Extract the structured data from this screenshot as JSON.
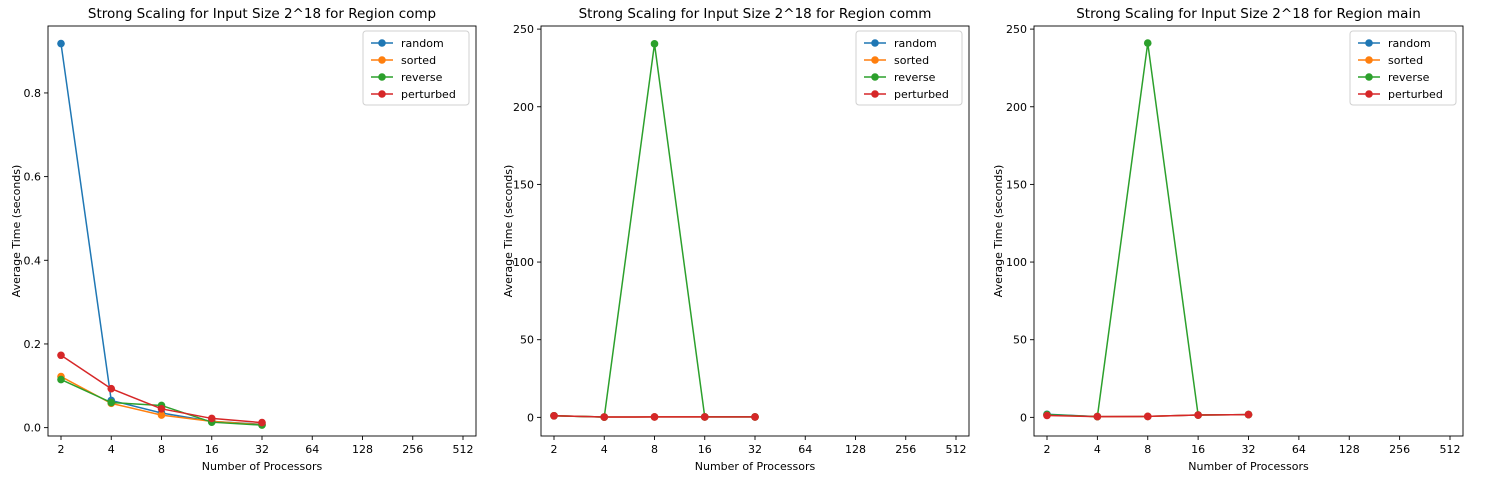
{
  "chart_data": [
    {
      "type": "line",
      "title": "Strong Scaling for Input Size 2^18 for Region comp",
      "xlabel": "Number of Processors",
      "ylabel": "Average Time (seconds)",
      "x_scale": "log2",
      "x_ticks": [
        2,
        4,
        8,
        16,
        32,
        64,
        128,
        256,
        512
      ],
      "xlim": [
        2,
        512
      ],
      "y_ticks": [
        0.0,
        0.2,
        0.4,
        0.6,
        0.8
      ],
      "y_tick_labels": [
        "0.0",
        "0.2",
        "0.4",
        "0.6",
        "0.8"
      ],
      "ylim": [
        -0.02,
        0.96
      ],
      "legend_placement": "top-right",
      "grid": false,
      "x": [
        2,
        4,
        8,
        16,
        32
      ],
      "series": [
        {
          "name": "random",
          "color": "#1f77b4",
          "values": [
            0.918,
            0.065,
            0.035,
            0.015,
            0.008
          ]
        },
        {
          "name": "sorted",
          "color": "#ff7f0e",
          "values": [
            0.122,
            0.058,
            0.03,
            0.015,
            0.007
          ]
        },
        {
          "name": "reverse",
          "color": "#2ca02c",
          "values": [
            0.115,
            0.06,
            0.053,
            0.013,
            0.006
          ]
        },
        {
          "name": "perturbed",
          "color": "#d62728",
          "values": [
            0.173,
            0.093,
            0.045,
            0.022,
            0.012
          ]
        }
      ]
    },
    {
      "type": "line",
      "title": "Strong Scaling for Input Size 2^18 for Region comm",
      "xlabel": "Number of Processors",
      "ylabel": "Average Time (seconds)",
      "x_scale": "log2",
      "x_ticks": [
        2,
        4,
        8,
        16,
        32,
        64,
        128,
        256,
        512
      ],
      "xlim": [
        2,
        512
      ],
      "y_ticks": [
        0,
        50,
        100,
        150,
        200,
        250
      ],
      "y_tick_labels": [
        "0",
        "50",
        "100",
        "150",
        "200",
        "250"
      ],
      "ylim": [
        -12,
        252
      ],
      "legend_placement": "top-right",
      "grid": false,
      "x": [
        2,
        4,
        8,
        16,
        32
      ],
      "series": [
        {
          "name": "random",
          "color": "#1f77b4",
          "values": [
            1.0,
            0.2,
            0.3,
            0.3,
            0.3
          ]
        },
        {
          "name": "sorted",
          "color": "#ff7f0e",
          "values": [
            1.0,
            0.2,
            0.3,
            0.3,
            0.3
          ]
        },
        {
          "name": "reverse",
          "color": "#2ca02c",
          "values": [
            1.0,
            0.2,
            240.5,
            0.3,
            0.3
          ]
        },
        {
          "name": "perturbed",
          "color": "#d62728",
          "values": [
            1.0,
            0.2,
            0.3,
            0.3,
            0.3
          ]
        }
      ]
    },
    {
      "type": "line",
      "title": "Strong Scaling for Input Size 2^18 for Region main",
      "xlabel": "Number of Processors",
      "ylabel": "Average Time (seconds)",
      "x_scale": "log2",
      "x_ticks": [
        2,
        4,
        8,
        16,
        32,
        64,
        128,
        256,
        512
      ],
      "xlim": [
        2,
        512
      ],
      "y_ticks": [
        0,
        50,
        100,
        150,
        200,
        250
      ],
      "y_tick_labels": [
        "0",
        "50",
        "100",
        "150",
        "200",
        "250"
      ],
      "ylim": [
        -12,
        252
      ],
      "legend_placement": "top-right",
      "grid": false,
      "x": [
        2,
        4,
        8,
        16,
        32
      ],
      "series": [
        {
          "name": "random",
          "color": "#1f77b4",
          "values": [
            2.0,
            0.5,
            0.6,
            1.5,
            1.8
          ]
        },
        {
          "name": "sorted",
          "color": "#ff7f0e",
          "values": [
            1.5,
            0.5,
            0.6,
            1.5,
            1.8
          ]
        },
        {
          "name": "reverse",
          "color": "#2ca02c",
          "values": [
            1.8,
            0.5,
            241.0,
            1.5,
            1.8
          ]
        },
        {
          "name": "perturbed",
          "color": "#d62728",
          "values": [
            1.2,
            0.5,
            0.6,
            1.5,
            1.8
          ]
        }
      ]
    }
  ]
}
